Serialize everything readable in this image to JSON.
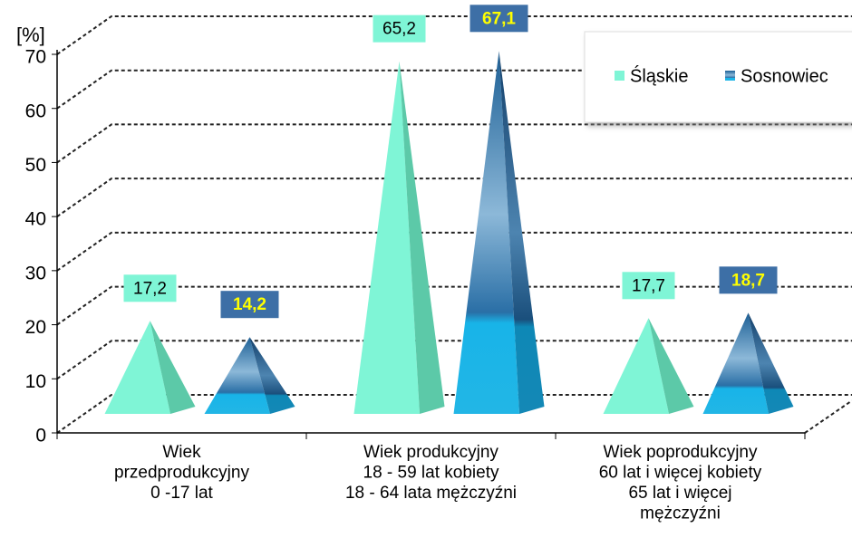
{
  "chart_data": {
    "type": "pyramid-bar",
    "y_label": "[%]",
    "categories": [
      [
        "Wiek",
        "przedprodukcyjny",
        "0 -17 lat"
      ],
      [
        "Wiek produkcyjny",
        "18 - 59 lat kobiety",
        "18 - 64 lata mężczyźni"
      ],
      [
        "Wiek poprodukcyjny",
        "60 lat i więcej kobiety",
        "65 lat i więcej",
        "mężczyźni"
      ]
    ],
    "series": [
      {
        "name": "Śląskie",
        "color": "#7ff5d6",
        "values": [
          17.2,
          65.2,
          17.7
        ],
        "value_labels": [
          "17,2",
          "65,2",
          "17,7"
        ]
      },
      {
        "name": "Sosnowiec",
        "color": "#2f86c0",
        "values": [
          14.2,
          67.1,
          18.7
        ],
        "value_labels": [
          "14,2",
          "67,1",
          "18,7"
        ]
      }
    ],
    "ylim": [
      0,
      70
    ],
    "yticks": [
      0,
      10,
      20,
      30,
      40,
      50,
      60,
      70
    ],
    "grid": true,
    "legend": "top-right"
  }
}
